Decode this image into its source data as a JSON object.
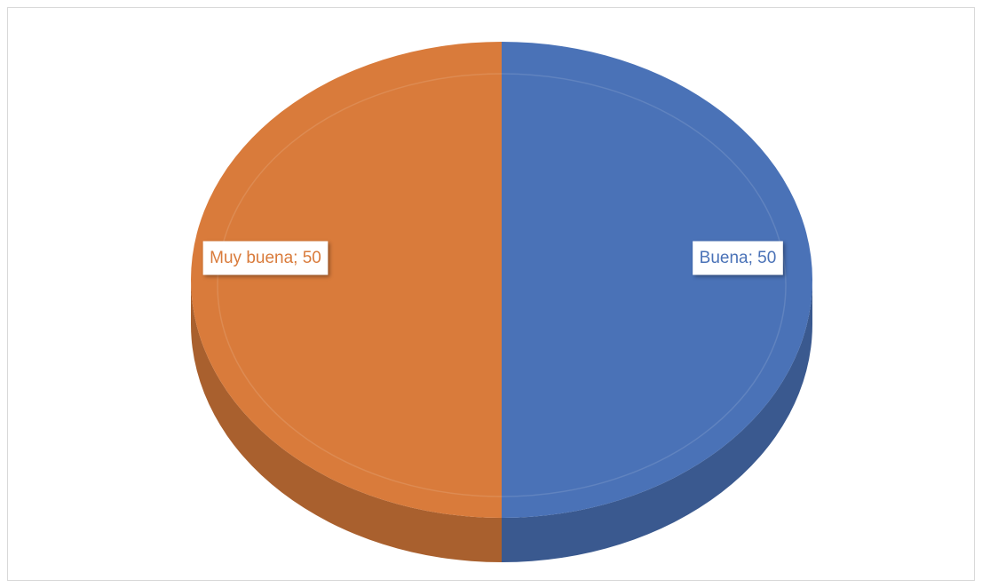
{
  "chart_data": {
    "type": "pie",
    "three_d": true,
    "categories": [
      "Buena",
      "Muy buena"
    ],
    "values": [
      50,
      50
    ],
    "value_labels": [
      "Buena; 50",
      "Muy buena; 50"
    ],
    "colors": [
      "#4a72b7",
      "#d97b3b"
    ]
  }
}
